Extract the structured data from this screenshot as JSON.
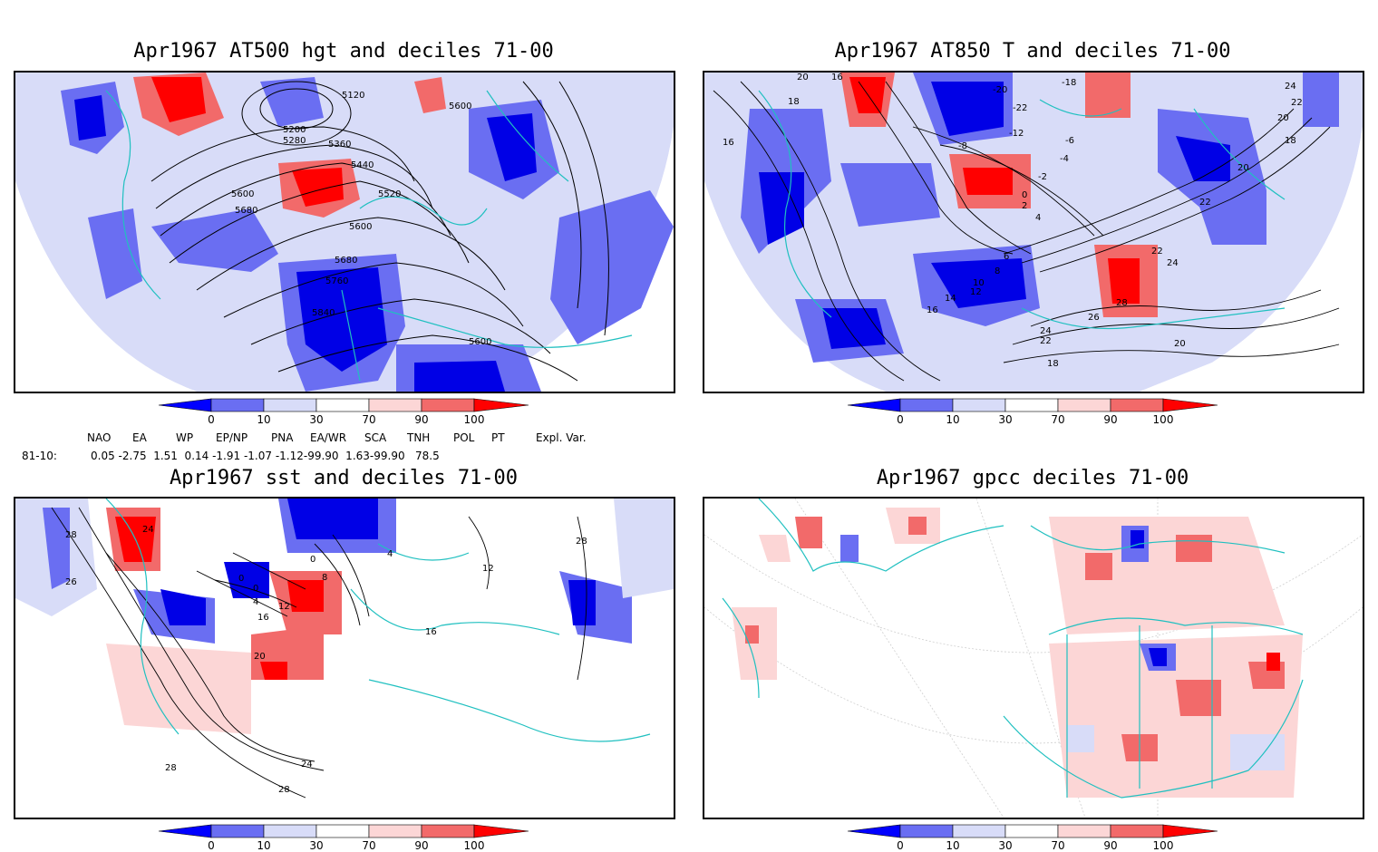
{
  "panels": [
    {
      "title": "Apr1967 AT500 hgt and deciles 71-00",
      "contour_labels": [
        "5120",
        "5200",
        "5280",
        "5360",
        "5440",
        "5520",
        "5600",
        "5600",
        "5680",
        "5600",
        "5680",
        "5760",
        "5840",
        "5600"
      ]
    },
    {
      "title": "Apr1967 AT850 T and deciles 71-00",
      "contour_labels": [
        "20",
        "18",
        "16",
        "16",
        "-20",
        "-18",
        "-22",
        "-12",
        "-8",
        "-6",
        "-4",
        "-2",
        "0",
        "2",
        "4",
        "6",
        "8",
        "10",
        "12",
        "14",
        "16",
        "24",
        "22",
        "20",
        "18",
        "20",
        "22",
        "22",
        "24",
        "28",
        "26",
        "24",
        "22",
        "20",
        "18"
      ]
    },
    {
      "title": "Apr1967 sst and deciles 71-00",
      "contour_labels": [
        "28",
        "26",
        "24",
        "0",
        "0",
        "4",
        "8",
        "12",
        "16",
        "20",
        "0",
        "4",
        "12",
        "16",
        "28",
        "24",
        "28",
        "28"
      ]
    },
    {
      "title": "Apr1967 gpcc deciles 71-00",
      "contour_labels": []
    }
  ],
  "colorbar": {
    "ticks": [
      "0",
      "10",
      "30",
      "70",
      "90",
      "100"
    ],
    "colors": [
      "#0000ff",
      "#6a6ef2",
      "#d8dcf8",
      "#ffffff",
      "#fcd6d6",
      "#f26a6a",
      "#ff0000"
    ]
  },
  "indices": {
    "headers": [
      "NAO",
      "EA",
      "WP",
      "EP/NP",
      "PNA",
      "EA/WR",
      "SCA",
      "TNH",
      "POL",
      "PT",
      "Expl. Var."
    ],
    "row_label": "81-10:",
    "values": "0.05 -2.75  1.51  0.14 -1.91 -1.07 -1.12-99.90  1.63-99.90   78.5"
  },
  "map_colors": {
    "deep_blue": "#0000e6",
    "mid_blue": "#6a6ef2",
    "light_blue": "#d8dcf8",
    "light_red": "#fcd6d6",
    "mid_red": "#f26a6a",
    "deep_red": "#ff0000",
    "coast": "#20c0c0",
    "contour": "#000000"
  }
}
